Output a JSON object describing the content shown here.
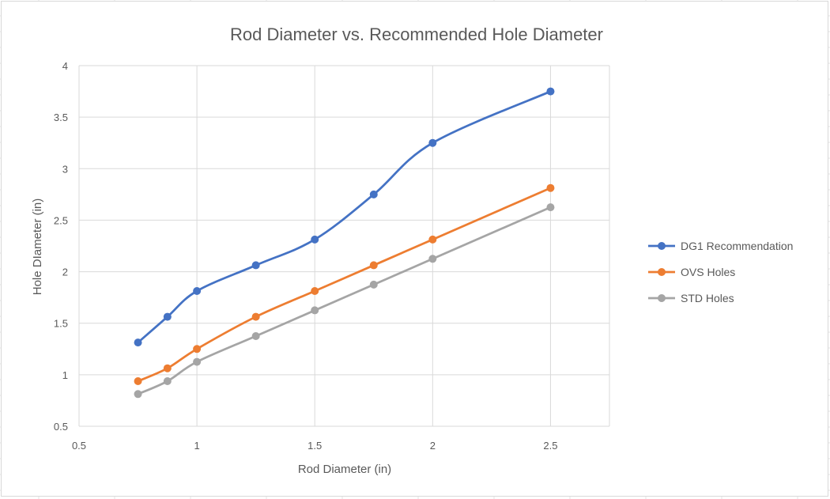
{
  "chart_data": {
    "type": "line",
    "title": "Rod Diameter vs. Recommended Hole Diameter",
    "xlabel": "Rod Diameter (in)",
    "ylabel": "Hole DIameter (in)",
    "xlim": [
      0.5,
      2.75
    ],
    "ylim": [
      0.5,
      4
    ],
    "x_ticks": [
      0.5,
      1,
      1.5,
      2,
      2.5
    ],
    "x_tick_labels": [
      "0.5",
      "1",
      "1.5",
      "2",
      "2.5"
    ],
    "y_ticks": [
      0.5,
      1,
      1.5,
      2,
      2.5,
      3,
      3.5,
      4
    ],
    "y_tick_labels": [
      "0.5",
      "1",
      "1.5",
      "2",
      "2.5",
      "3",
      "3.5",
      "4"
    ],
    "grid": true,
    "smooth": true,
    "legend_position": "right",
    "series": [
      {
        "name": "DG1 Recommendation",
        "color": "#4472c4",
        "x": [
          0.75,
          0.875,
          1,
          1.25,
          1.5,
          1.75,
          2,
          2.5
        ],
        "y": [
          1.3125,
          1.5625,
          1.8125,
          2.0625,
          2.3125,
          2.75,
          3.25,
          3.75
        ]
      },
      {
        "name": "OVS Holes",
        "color": "#ed7d31",
        "x": [
          0.75,
          0.875,
          1,
          1.25,
          1.5,
          1.75,
          2,
          2.5
        ],
        "y": [
          0.9375,
          1.0625,
          1.25,
          1.5625,
          1.8125,
          2.0625,
          2.3125,
          2.8125
        ]
      },
      {
        "name": "STD Holes",
        "color": "#a5a5a5",
        "x": [
          0.75,
          0.875,
          1,
          1.25,
          1.5,
          1.75,
          2,
          2.5
        ],
        "y": [
          0.8125,
          0.9375,
          1.125,
          1.375,
          1.625,
          1.875,
          2.125,
          2.625
        ]
      }
    ]
  }
}
